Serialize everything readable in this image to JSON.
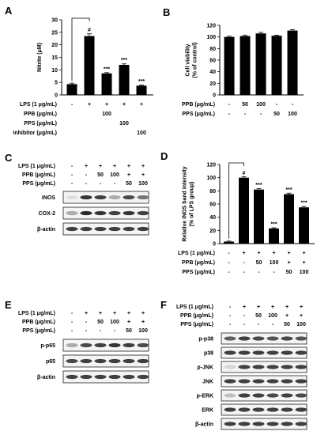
{
  "panels": {
    "A": "A",
    "B": "B",
    "C": "C",
    "D": "D",
    "E": "E",
    "F": "F"
  },
  "chart_data": [
    {
      "id": "A",
      "type": "bar",
      "ylabel": "Nitrite (μM)",
      "ylim": [
        0,
        30
      ],
      "yticks": [
        "0",
        "5",
        "10",
        "15",
        "20",
        "25",
        "30"
      ],
      "values": [
        4.3,
        23.5,
        8.6,
        12.0,
        3.7
      ],
      "errors": [
        0.4,
        0.9,
        0.3,
        0.4,
        0.3
      ],
      "annotations": [
        "",
        "#",
        "***",
        "***",
        "***"
      ],
      "conditions": [
        {
          "label": "LPS (1 μg/mL)",
          "cells": [
            "-",
            "+",
            "+",
            "+",
            "+"
          ]
        },
        {
          "label": "PPB (μg/mL)",
          "cells": [
            "",
            "",
            "100",
            "",
            ""
          ]
        },
        {
          "label": "PPS (μg/mL)",
          "cells": [
            "",
            "",
            "",
            "100",
            ""
          ]
        },
        {
          "label": "inhibitor (μg/mL)",
          "cells": [
            "",
            "",
            "",
            "",
            "100"
          ]
        }
      ]
    },
    {
      "id": "B",
      "type": "bar",
      "ylabel": "Cell viability\n(% of control)",
      "ylim": [
        0,
        120
      ],
      "yticks": [
        "0",
        "20",
        "40",
        "60",
        "80",
        "100",
        "120"
      ],
      "values": [
        100,
        101.5,
        106,
        102,
        111
      ],
      "errors": [
        1.2,
        1.5,
        1.8,
        1.0,
        1.5
      ],
      "annotations": [
        "",
        "",
        "",
        "",
        ""
      ],
      "conditions": [
        {
          "label": "PPB (μg/mL)",
          "cells": [
            "-",
            "50",
            "100",
            "-",
            "-"
          ]
        },
        {
          "label": "PPS (μg/mL)",
          "cells": [
            "-",
            "-",
            "-",
            "50",
            "100"
          ]
        }
      ]
    },
    {
      "id": "D",
      "type": "bar",
      "ylabel": "Relative iNOS band intensity\n(% of LPS group)",
      "ylim": [
        0,
        120
      ],
      "yticks": [
        "0",
        "20",
        "40",
        "60",
        "80",
        "100",
        "120"
      ],
      "values": [
        3,
        100,
        82,
        23,
        75,
        55
      ],
      "errors": [
        0.8,
        1.5,
        1.5,
        1.0,
        1.5,
        1.5
      ],
      "annotations": [
        "",
        "#",
        "***",
        "***",
        "***",
        "***"
      ],
      "conditions": [
        {
          "label": "LPS (1 μg/mL)",
          "cells": [
            "-",
            "+",
            "+",
            "+",
            "+",
            "+"
          ]
        },
        {
          "label": "PPB (μg/mL)",
          "cells": [
            "-",
            "-",
            "50",
            "100",
            "+",
            "+"
          ]
        },
        {
          "label": "PPS (μg/mL)",
          "cells": [
            "-",
            "-",
            "-",
            "-",
            "50",
            "100"
          ]
        }
      ]
    }
  ],
  "blots": {
    "C": {
      "conditions": [
        {
          "label": "LPS (1 μg/mL)",
          "cells": [
            "-",
            "+",
            "+",
            "+",
            "+",
            "+"
          ]
        },
        {
          "label": "PPB (μg/mL)",
          "cells": [
            "-",
            "-",
            "50",
            "100",
            "+",
            "+"
          ]
        },
        {
          "label": "PPS (μg/mL)",
          "cells": [
            "-",
            "-",
            "-",
            "-",
            "50",
            "100"
          ]
        }
      ],
      "rows": [
        {
          "label": "iNOS",
          "bands": [
            0.05,
            0.85,
            0.8,
            0.3,
            0.75,
            0.55
          ]
        },
        {
          "label": "COX-2",
          "bands": [
            0.3,
            0.9,
            0.85,
            0.8,
            0.85,
            0.8
          ]
        },
        {
          "label": "β-actin",
          "bands": [
            0.8,
            0.8,
            0.8,
            0.8,
            0.8,
            0.8
          ]
        }
      ]
    },
    "E": {
      "conditions": [
        {
          "label": "LPS (1 μg/mL)",
          "cells": [
            "-",
            "+",
            "+",
            "+",
            "+",
            "+"
          ]
        },
        {
          "label": "PPB (μg/mL)",
          "cells": [
            "-",
            "-",
            "50",
            "100",
            "+",
            "+"
          ]
        },
        {
          "label": "PPS (μg/mL)",
          "cells": [
            "-",
            "-",
            "-",
            "-",
            "50",
            "100"
          ]
        }
      ],
      "rows": [
        {
          "label": "p-p65",
          "bands": [
            0.3,
            0.75,
            0.8,
            0.85,
            0.8,
            0.75
          ]
        },
        {
          "label": "p65",
          "bands": [
            0.75,
            0.8,
            0.8,
            0.8,
            0.8,
            0.8
          ]
        },
        {
          "label": "β-actin",
          "bands": [
            0.8,
            0.8,
            0.8,
            0.8,
            0.8,
            0.8
          ]
        }
      ]
    },
    "F": {
      "conditions": [
        {
          "label": "LPS (1 μg/mL)",
          "cells": [
            "-",
            "+",
            "+",
            "+",
            "+",
            "+"
          ]
        },
        {
          "label": "PPB (μg/mL)",
          "cells": [
            "-",
            "-",
            "50",
            "100",
            "+",
            "+"
          ]
        },
        {
          "label": "PPS (μg/mL)",
          "cells": [
            "-",
            "-",
            "-",
            "-",
            "50",
            "100"
          ]
        }
      ],
      "rows": [
        {
          "label": "p-p38",
          "bands": [
            0.65,
            0.8,
            0.75,
            0.7,
            0.75,
            0.7
          ]
        },
        {
          "label": "p38",
          "bands": [
            0.8,
            0.8,
            0.8,
            0.8,
            0.8,
            0.8
          ]
        },
        {
          "label": "p-JNK",
          "bands": [
            0.1,
            0.8,
            0.8,
            0.8,
            0.8,
            0.8
          ]
        },
        {
          "label": "JNK",
          "bands": [
            0.8,
            0.8,
            0.8,
            0.8,
            0.8,
            0.8
          ]
        },
        {
          "label": "p-ERK",
          "bands": [
            0.2,
            0.8,
            0.8,
            0.75,
            0.8,
            0.75
          ]
        },
        {
          "label": "ERK",
          "bands": [
            0.8,
            0.8,
            0.8,
            0.8,
            0.8,
            0.8
          ]
        },
        {
          "label": "β-actin",
          "bands": [
            0.8,
            0.8,
            0.8,
            0.8,
            0.8,
            0.8
          ]
        }
      ]
    }
  }
}
